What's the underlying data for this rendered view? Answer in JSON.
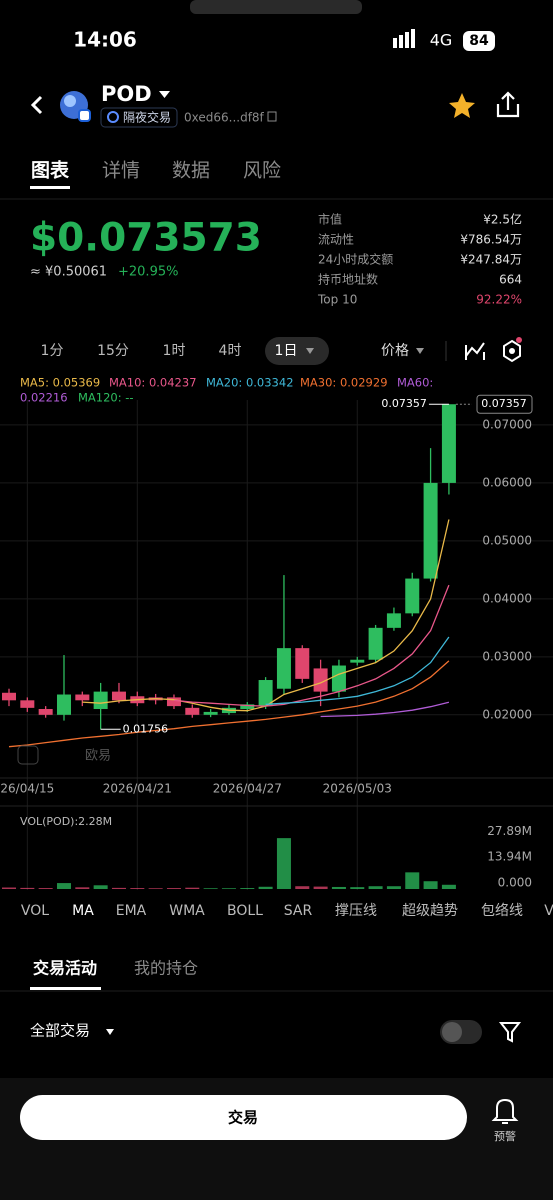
{
  "status_bar": {
    "time": "14:06",
    "network": "4G",
    "battery": "84"
  },
  "header": {
    "symbol": "POD",
    "badge": "隔夜交易",
    "address": "0xed66...df8f"
  },
  "tabs": [
    "图表",
    "详情",
    "数据",
    "风险"
  ],
  "price": {
    "value": "$0.073573",
    "cny": "≈ ¥0.50061",
    "change": "+20.95%"
  },
  "stats": [
    {
      "label": "市值",
      "value": "¥2.5亿"
    },
    {
      "label": "流动性",
      "value": "¥786.54万"
    },
    {
      "label": "24小时成交额",
      "value": "¥247.84万"
    },
    {
      "label": "持币地址数",
      "value": "664"
    },
    {
      "label": "Top 10",
      "value": "92.22%"
    }
  ],
  "intervals": [
    "1分",
    "15分",
    "1时",
    "4时",
    "1日"
  ],
  "price_selector": "价格",
  "chart_data": {
    "type": "candlestick",
    "up_color": "#2ebd5f",
    "down_color": "#e0466d",
    "ma_legend": [
      {
        "text": "MA5: 0.05369",
        "color": "#e9b949"
      },
      {
        "text": "MA10: 0.04237",
        "color": "#e8578a"
      },
      {
        "text": "MA20: 0.03342",
        "color": "#3fb8d8"
      },
      {
        "text": "MA30: 0.02929",
        "color": "#f07030"
      },
      {
        "text": "MA60:",
        "color": "#b05cd6"
      },
      {
        "text": "0.02216",
        "color": "#b05cd6"
      },
      {
        "text": "MA120: --",
        "color": "#2ebd5f"
      }
    ],
    "candles": [
      {
        "open": 0.0238,
        "high": 0.0245,
        "low": 0.0215,
        "close": 0.0225
      },
      {
        "open": 0.0225,
        "high": 0.023,
        "low": 0.0205,
        "close": 0.0212
      },
      {
        "open": 0.021,
        "high": 0.0215,
        "low": 0.0195,
        "close": 0.02
      },
      {
        "open": 0.02,
        "high": 0.0303,
        "low": 0.019,
        "close": 0.0235
      },
      {
        "open": 0.0235,
        "high": 0.024,
        "low": 0.0215,
        "close": 0.0225
      },
      {
        "open": 0.021,
        "high": 0.0255,
        "low": 0.0175,
        "close": 0.024
      },
      {
        "open": 0.024,
        "high": 0.0255,
        "low": 0.022,
        "close": 0.0225
      },
      {
        "open": 0.0232,
        "high": 0.024,
        "low": 0.0215,
        "close": 0.022
      },
      {
        "open": 0.023,
        "high": 0.0236,
        "low": 0.0218,
        "close": 0.0225
      },
      {
        "open": 0.023,
        "high": 0.0235,
        "low": 0.021,
        "close": 0.0215
      },
      {
        "open": 0.0212,
        "high": 0.0218,
        "low": 0.0195,
        "close": 0.02
      },
      {
        "open": 0.02,
        "high": 0.021,
        "low": 0.0196,
        "close": 0.0205
      },
      {
        "open": 0.0203,
        "high": 0.0218,
        "low": 0.02,
        "close": 0.0212
      },
      {
        "open": 0.021,
        "high": 0.0222,
        "low": 0.0205,
        "close": 0.0218
      },
      {
        "open": 0.0215,
        "high": 0.0265,
        "low": 0.021,
        "close": 0.026
      },
      {
        "open": 0.0245,
        "high": 0.0441,
        "low": 0.0235,
        "close": 0.0315
      },
      {
        "open": 0.0315,
        "high": 0.032,
        "low": 0.0255,
        "close": 0.0262
      },
      {
        "open": 0.028,
        "high": 0.0295,
        "low": 0.0215,
        "close": 0.024
      },
      {
        "open": 0.024,
        "high": 0.0295,
        "low": 0.023,
        "close": 0.0285
      },
      {
        "open": 0.029,
        "high": 0.03,
        "low": 0.0285,
        "close": 0.0295
      },
      {
        "open": 0.0295,
        "high": 0.0355,
        "low": 0.029,
        "close": 0.035
      },
      {
        "open": 0.035,
        "high": 0.0385,
        "low": 0.0345,
        "close": 0.0375
      },
      {
        "open": 0.0375,
        "high": 0.0445,
        "low": 0.037,
        "close": 0.0435
      },
      {
        "open": 0.0435,
        "high": 0.066,
        "low": 0.043,
        "close": 0.06
      },
      {
        "open": 0.06,
        "high": 0.07357,
        "low": 0.058,
        "close": 0.07357
      }
    ],
    "ma_lines": [
      {
        "color": "#e9b949",
        "values": [
          null,
          null,
          null,
          null,
          0.0222,
          0.022,
          0.0224,
          0.0226,
          0.0228,
          0.0226,
          0.022,
          0.0213,
          0.0208,
          0.0207,
          0.0215,
          0.0235,
          0.0245,
          0.0255,
          0.027,
          0.028,
          0.029,
          0.031,
          0.0345,
          0.04,
          0.05369
        ]
      },
      {
        "color": "#e8578a",
        "values": [
          null,
          null,
          null,
          null,
          null,
          null,
          null,
          null,
          null,
          0.0225,
          0.0222,
          0.022,
          0.0218,
          0.0216,
          0.0215,
          0.0218,
          0.0225,
          0.0232,
          0.024,
          0.025,
          0.0262,
          0.028,
          0.0305,
          0.0345,
          0.04237
        ]
      },
      {
        "color": "#3fb8d8",
        "values": [
          null,
          null,
          null,
          null,
          null,
          null,
          null,
          null,
          null,
          null,
          null,
          null,
          null,
          null,
          0.0218,
          0.022,
          0.0222,
          0.0225,
          0.0228,
          0.0232,
          0.024,
          0.025,
          0.0265,
          0.029,
          0.03342
        ]
      },
      {
        "color": "#f07030",
        "values": [
          0.0145,
          0.0148,
          0.0152,
          0.0156,
          0.016,
          0.0163,
          0.0166,
          0.017,
          0.0173,
          0.0176,
          0.018,
          0.0183,
          0.0186,
          0.0189,
          0.0192,
          0.0196,
          0.02,
          0.0205,
          0.021,
          0.0215,
          0.0222,
          0.0232,
          0.0245,
          0.0265,
          0.02929
        ]
      },
      {
        "color": "#b05cd6",
        "values": [
          null,
          null,
          null,
          null,
          null,
          null,
          null,
          null,
          null,
          null,
          null,
          null,
          null,
          null,
          null,
          null,
          null,
          0.0197,
          0.0198,
          0.0199,
          0.0201,
          0.0204,
          0.0208,
          0.0214,
          0.02216
        ]
      }
    ],
    "ylim": [
      0.0091,
      0.0743
    ],
    "yticks": [
      {
        "value": 0.07,
        "label": "0.07000"
      },
      {
        "value": 0.06,
        "label": "0.06000"
      },
      {
        "value": 0.05,
        "label": "0.05000"
      },
      {
        "value": 0.04,
        "label": "0.04000"
      },
      {
        "value": 0.03,
        "label": "0.03000"
      },
      {
        "value": 0.02,
        "label": "0.02000"
      }
    ],
    "xticks": [
      {
        "value": 1,
        "label": "26/04/15"
      },
      {
        "value": 7,
        "label": "2026/04/21"
      },
      {
        "value": 13,
        "label": "2026/04/27"
      },
      {
        "value": 19,
        "label": "2026/05/03"
      }
    ],
    "last_price_label": "0.07357",
    "low_label": "0.01756",
    "watermark": "欧易",
    "volume": {
      "title": "VOL(POD):2.28M",
      "values": [
        800000,
        600000,
        500000,
        3200000,
        900000,
        2000000,
        600000,
        500000,
        400000,
        500000,
        700000,
        400000,
        400000,
        500000,
        1200000,
        27500000,
        1500000,
        1300000,
        1100000,
        1000000,
        1500000,
        1500000,
        9000000,
        4200000,
        2280000
      ],
      "ylim": [
        0,
        40000000
      ],
      "yticks": [
        {
          "value": 27890000,
          "label": "27.89M"
        },
        {
          "value": 13940000,
          "label": "13.94M"
        },
        {
          "value": 0,
          "label": "0.000"
        }
      ]
    }
  },
  "indicators": [
    "VOL",
    "MA",
    "EMA",
    "WMA",
    "BOLL",
    "SAR",
    "撑压线",
    "超级趋势",
    "包络线",
    "V"
  ],
  "activity_tabs": [
    "交易活动",
    "我的持仓"
  ],
  "filter": "全部交易",
  "bottom": {
    "trade": "交易",
    "alert": "预警"
  }
}
